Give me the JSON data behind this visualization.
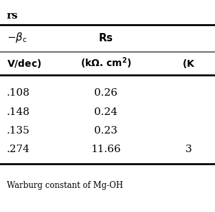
{
  "title": "rs",
  "header_row1_col0": "−β₂",
  "header_row1_col1": "Rs",
  "header_row1_col2": "",
  "header_row2_col0": "V/dec)",
  "header_row2_col1": "(kΩ. cm²)",
  "header_row2_col2": "(K",
  "rows": [
    [
      ".108",
      "0.26",
      ""
    ],
    [
      ".148",
      "0.24",
      ""
    ],
    [
      ".135",
      "0.23",
      ""
    ],
    [
      ".274",
      "11.66",
      "3"
    ]
  ],
  "footnote": "Warburg constant of Mg-OH",
  "bg_color": "#ffffff",
  "text_color": "#000000",
  "line_color": "#000000"
}
